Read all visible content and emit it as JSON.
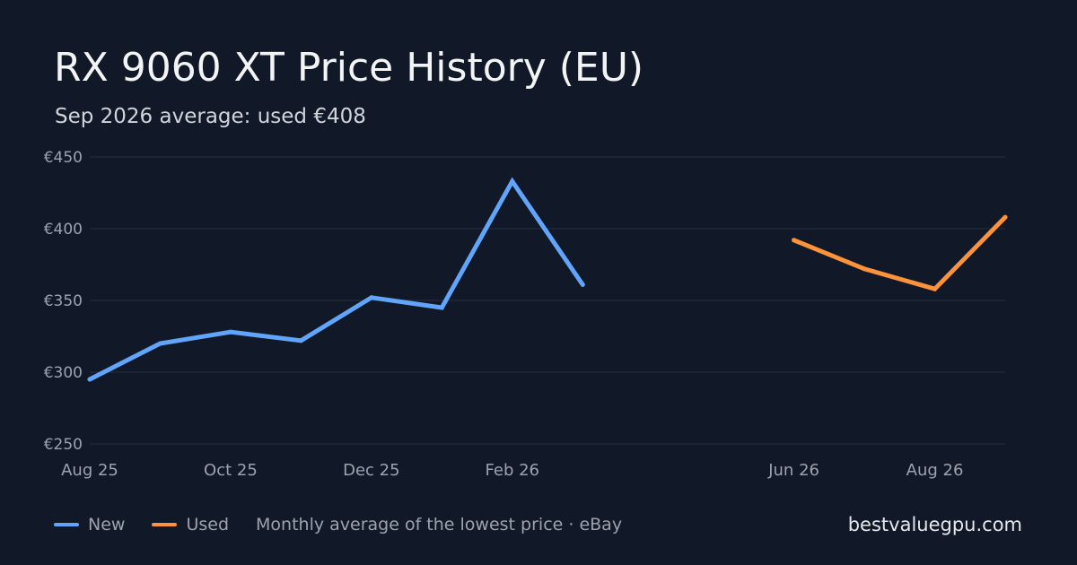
{
  "header": {
    "title": "RX 9060 XT Price History (EU)",
    "subtitle": "Sep 2026 average: used €408"
  },
  "legend": {
    "items": [
      {
        "label": "New",
        "color": "#60a5fa"
      },
      {
        "label": "Used",
        "color": "#fb923c"
      }
    ],
    "note": "Monthly average of the lowest price · eBay"
  },
  "footer": {
    "site": "bestvaluegpu.com"
  },
  "chart_data": {
    "type": "line",
    "x": [
      "Aug 25",
      "Sep 25",
      "Oct 25",
      "Nov 25",
      "Dec 25",
      "Jan 26",
      "Feb 26",
      "Mar 26",
      "Apr 26",
      "May 26",
      "Jun 26",
      "Jul 26",
      "Aug 26",
      "Sep 26"
    ],
    "x_tick_labels": [
      "Aug 25",
      "Oct 25",
      "Dec 25",
      "Feb 26",
      "Jun 26",
      "Aug 26"
    ],
    "y_tick_labels": [
      "€450",
      "€400",
      "€350",
      "€300",
      "€250"
    ],
    "ylim": [
      250,
      450
    ],
    "y_ticks": [
      250,
      300,
      350,
      400,
      450
    ],
    "grid": true,
    "legend_position": "bottom-left",
    "series": [
      {
        "name": "New",
        "color": "#60a5fa",
        "values": [
          295,
          320,
          328,
          322,
          352,
          345,
          433,
          361,
          null,
          null,
          null,
          null,
          null,
          null
        ]
      },
      {
        "name": "Used",
        "color": "#fb923c",
        "values": [
          null,
          null,
          null,
          null,
          null,
          null,
          null,
          null,
          null,
          null,
          392,
          372,
          358,
          408
        ]
      }
    ]
  }
}
